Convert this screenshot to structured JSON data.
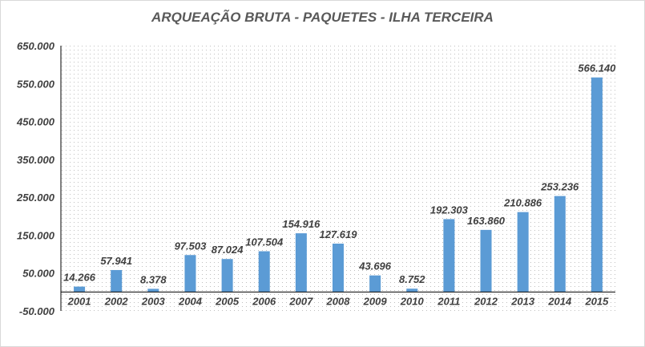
{
  "chart_data": {
    "type": "bar",
    "title": "ARQUEAÇÃO BRUTA - PAQUETES - ILHA TERCEIRA",
    "xlabel": "",
    "ylabel": "",
    "categories": [
      "2001",
      "2002",
      "2003",
      "2004",
      "2005",
      "2006",
      "2007",
      "2008",
      "2009",
      "2010",
      "2011",
      "2012",
      "2013",
      "2014",
      "2015"
    ],
    "values": [
      14266,
      57941,
      8378,
      97503,
      87024,
      107504,
      154916,
      127619,
      43696,
      8752,
      192303,
      163860,
      210886,
      253236,
      566140
    ],
    "data_labels": [
      "14.266",
      "57.941",
      "8.378",
      "97.503",
      "87.024",
      "107.504",
      "154.916",
      "127.619",
      "43.696",
      "8.752",
      "192.303",
      "163.860",
      "210.886",
      "253.236",
      "566.140"
    ],
    "ylim": [
      -50000,
      650000
    ],
    "yticks": [
      -50000,
      50000,
      150000,
      250000,
      350000,
      450000,
      550000,
      650000
    ],
    "ytick_labels": [
      "-50.000",
      "50.000",
      "150.000",
      "250.000",
      "350.000",
      "450.000",
      "550.000",
      "650.000"
    ],
    "grid": false,
    "legend": "none",
    "colors": {
      "bar": "#5b9bd5",
      "axis": "#000000",
      "text": "#404040",
      "title": "#595959",
      "pattern": "#bfbfbf"
    }
  }
}
